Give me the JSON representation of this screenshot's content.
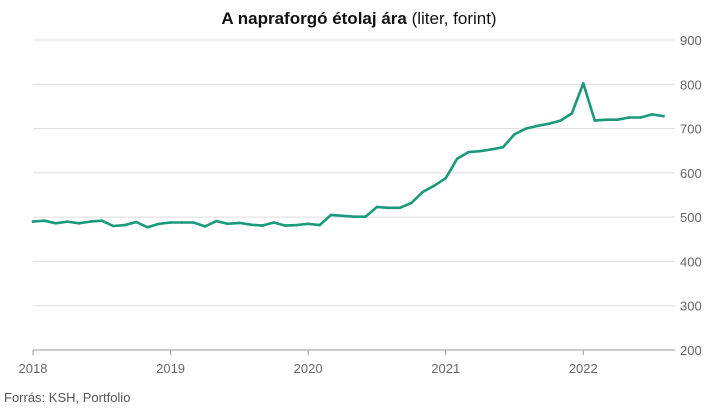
{
  "title_main": "A napraforgó étolaj ára",
  "title_suffix": "(liter, forint)",
  "source": "Forrás: KSH, Portfolio",
  "colors": {
    "line": "#1a9a7b",
    "grid": "#dddddd",
    "axis": "#999999",
    "tick_text": "#666666"
  },
  "chart_data": {
    "type": "line",
    "title": "A napraforgó étolaj ára (liter, forint)",
    "xlabel": "",
    "ylabel": "",
    "x_ticks": [
      "2018",
      "2019",
      "2020",
      "2021",
      "2022"
    ],
    "y_ticks": [
      200,
      300,
      400,
      500,
      600,
      700,
      800,
      900
    ],
    "ylim": [
      200,
      900
    ],
    "xlim": [
      "2018-01",
      "2022-09"
    ],
    "y_axis_side": "right",
    "grid": true,
    "legend": "none",
    "series": [
      {
        "x": [
          "2018-01",
          "2018-02",
          "2018-03",
          "2018-04",
          "2018-05",
          "2018-06",
          "2018-07",
          "2018-08",
          "2018-09",
          "2018-10",
          "2018-11",
          "2018-12",
          "2019-01",
          "2019-02",
          "2019-03",
          "2019-04",
          "2019-05",
          "2019-06",
          "2019-07",
          "2019-08",
          "2019-09",
          "2019-10",
          "2019-11",
          "2019-12",
          "2020-01",
          "2020-02",
          "2020-03",
          "2020-04",
          "2020-05",
          "2020-06",
          "2020-07",
          "2020-08",
          "2020-09",
          "2020-10",
          "2020-11",
          "2020-12",
          "2021-01",
          "2021-02",
          "2021-03",
          "2021-04",
          "2021-05",
          "2021-06",
          "2021-07",
          "2021-08",
          "2021-09",
          "2021-10",
          "2021-11",
          "2021-12",
          "2022-01",
          "2022-02",
          "2022-03",
          "2022-04",
          "2022-05",
          "2022-06",
          "2022-07",
          "2022-08"
        ],
        "values": [
          490,
          492,
          486,
          490,
          486,
          490,
          492,
          480,
          482,
          489,
          477,
          485,
          488,
          488,
          488,
          479,
          491,
          485,
          487,
          483,
          481,
          488,
          481,
          482,
          485,
          482,
          505,
          503,
          501,
          501,
          523,
          521,
          521,
          532,
          557,
          571,
          588,
          632,
          647,
          649,
          653,
          658,
          687,
          700,
          706,
          711,
          718,
          734,
          802,
          718,
          720,
          720,
          725,
          725,
          732,
          728
        ]
      }
    ]
  }
}
